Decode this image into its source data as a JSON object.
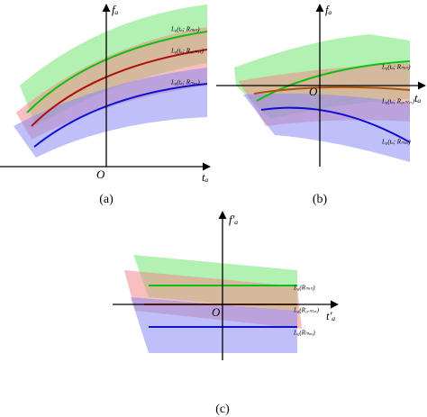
{
  "panels": [
    {
      "y_axis_label": "fₐ",
      "x_axis_label": "tₐ",
      "origin": "O",
      "caption": "(a)",
      "curves": [
        {
          "label": "L₀(tₐ; Rₘᵢₙ)"
        },
        {
          "label": "L₀(tₐ; R꜀ₑₙₜₑᵣ)"
        },
        {
          "label": "L₀(tₐ; Rₘₐₓ)"
        }
      ]
    },
    {
      "y_axis_label": "fₐ",
      "x_axis_label": "tₐ",
      "origin": "O",
      "caption": "(b)",
      "curves": [
        {
          "label": "L₀(tₐ; Rₘᵢₙ)"
        },
        {
          "label": "L₀(tₐ; R꜀ₑₙₜₑᵣ)"
        },
        {
          "label": "L₀(tₐ; Rₘₐₓ)"
        }
      ]
    },
    {
      "y_axis_label": "f′ₐ",
      "x_axis_label": "t′ₐ",
      "origin": "O",
      "caption": "(c)",
      "curves": [
        {
          "label": "L₀(Rₘᵢₙ)"
        },
        {
          "label": "L₀(R꜀ₑₙₜₑᵣ)"
        },
        {
          "label": "L₀(Rₘₐₓ)"
        }
      ]
    }
  ]
}
